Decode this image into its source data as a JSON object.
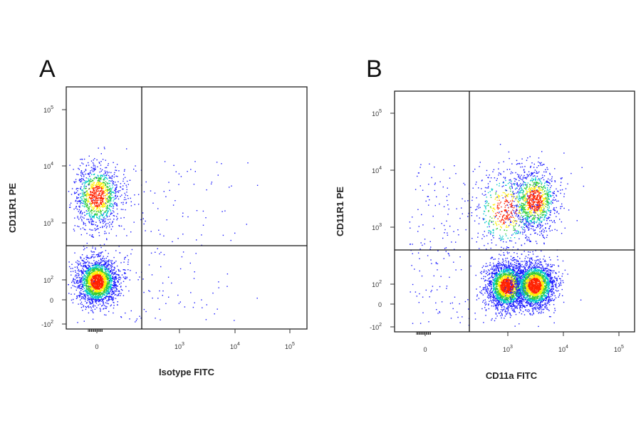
{
  "figure": {
    "panels": [
      {
        "letter": "A",
        "xlabel": "Isotype FITC",
        "ylabel": "CD11R1 PE"
      },
      {
        "letter": "B",
        "xlabel": "CD11a FITC",
        "ylabel": "CD11R1 PE"
      }
    ]
  },
  "colors": {
    "density_low": "#1a1aff",
    "density_mid_low": "#00c8c8",
    "density_mid": "#33cc33",
    "density_mid_high": "#ffee00",
    "density_high": "#ff2200",
    "frame": "#222222"
  },
  "chart_data": [
    {
      "type": "scatter",
      "subtype": "flow-cytometry-density-dot-plot",
      "panel": "A",
      "xlabel": "Isotype FITC",
      "ylabel": "CD11R1 PE",
      "xscale": "biexponential",
      "yscale": "biexponential",
      "x_ticks": [
        {
          "value": 0,
          "label": "0"
        },
        {
          "value": 1000,
          "base": "10",
          "exp": "3"
        },
        {
          "value": 10000,
          "base": "10",
          "exp": "4"
        },
        {
          "value": 100000,
          "base": "10",
          "exp": "5"
        }
      ],
      "y_ticks": [
        {
          "value": -100,
          "base": "-10",
          "exp": "2"
        },
        {
          "value": 0,
          "label": "0"
        },
        {
          "value": 100,
          "base": "10",
          "exp": "2"
        },
        {
          "value": 1000,
          "base": "10",
          "exp": "3"
        },
        {
          "value": 10000,
          "base": "10",
          "exp": "4"
        },
        {
          "value": 100000,
          "base": "10",
          "exp": "5"
        }
      ],
      "quadrant_gate": {
        "x": 300,
        "y": 300
      },
      "populations": [
        {
          "x_center": 0,
          "y_center": 70,
          "density": "high"
        },
        {
          "x_center": 0,
          "y_center": 3000,
          "density": "medium"
        }
      ],
      "grid": false,
      "legend": "none"
    },
    {
      "type": "scatter",
      "subtype": "flow-cytometry-density-dot-plot",
      "panel": "B",
      "xlabel": "CD11a FITC",
      "ylabel": "CD11R1 PE",
      "xscale": "biexponential",
      "yscale": "biexponential",
      "x_ticks": [
        {
          "value": 0,
          "label": "0"
        },
        {
          "value": 1000,
          "base": "10",
          "exp": "3"
        },
        {
          "value": 10000,
          "base": "10",
          "exp": "4"
        },
        {
          "value": 100000,
          "base": "10",
          "exp": "5"
        }
      ],
      "y_ticks": [
        {
          "value": -100,
          "base": "-10",
          "exp": "2"
        },
        {
          "value": 0,
          "label": "0"
        },
        {
          "value": 100,
          "base": "10",
          "exp": "2"
        },
        {
          "value": 1000,
          "base": "10",
          "exp": "3"
        },
        {
          "value": 10000,
          "base": "10",
          "exp": "4"
        },
        {
          "value": 100000,
          "base": "10",
          "exp": "5"
        }
      ],
      "quadrant_gate": {
        "x": 300,
        "y": 300
      },
      "populations": [
        {
          "x_center": 900,
          "y_center": 70,
          "density": "high"
        },
        {
          "x_center": 3000,
          "y_center": 80,
          "density": "high"
        },
        {
          "x_center": 3000,
          "y_center": 3000,
          "density": "medium"
        },
        {
          "x_center": 800,
          "y_center": 2000,
          "density": "low"
        }
      ],
      "grid": false,
      "legend": "none"
    }
  ]
}
